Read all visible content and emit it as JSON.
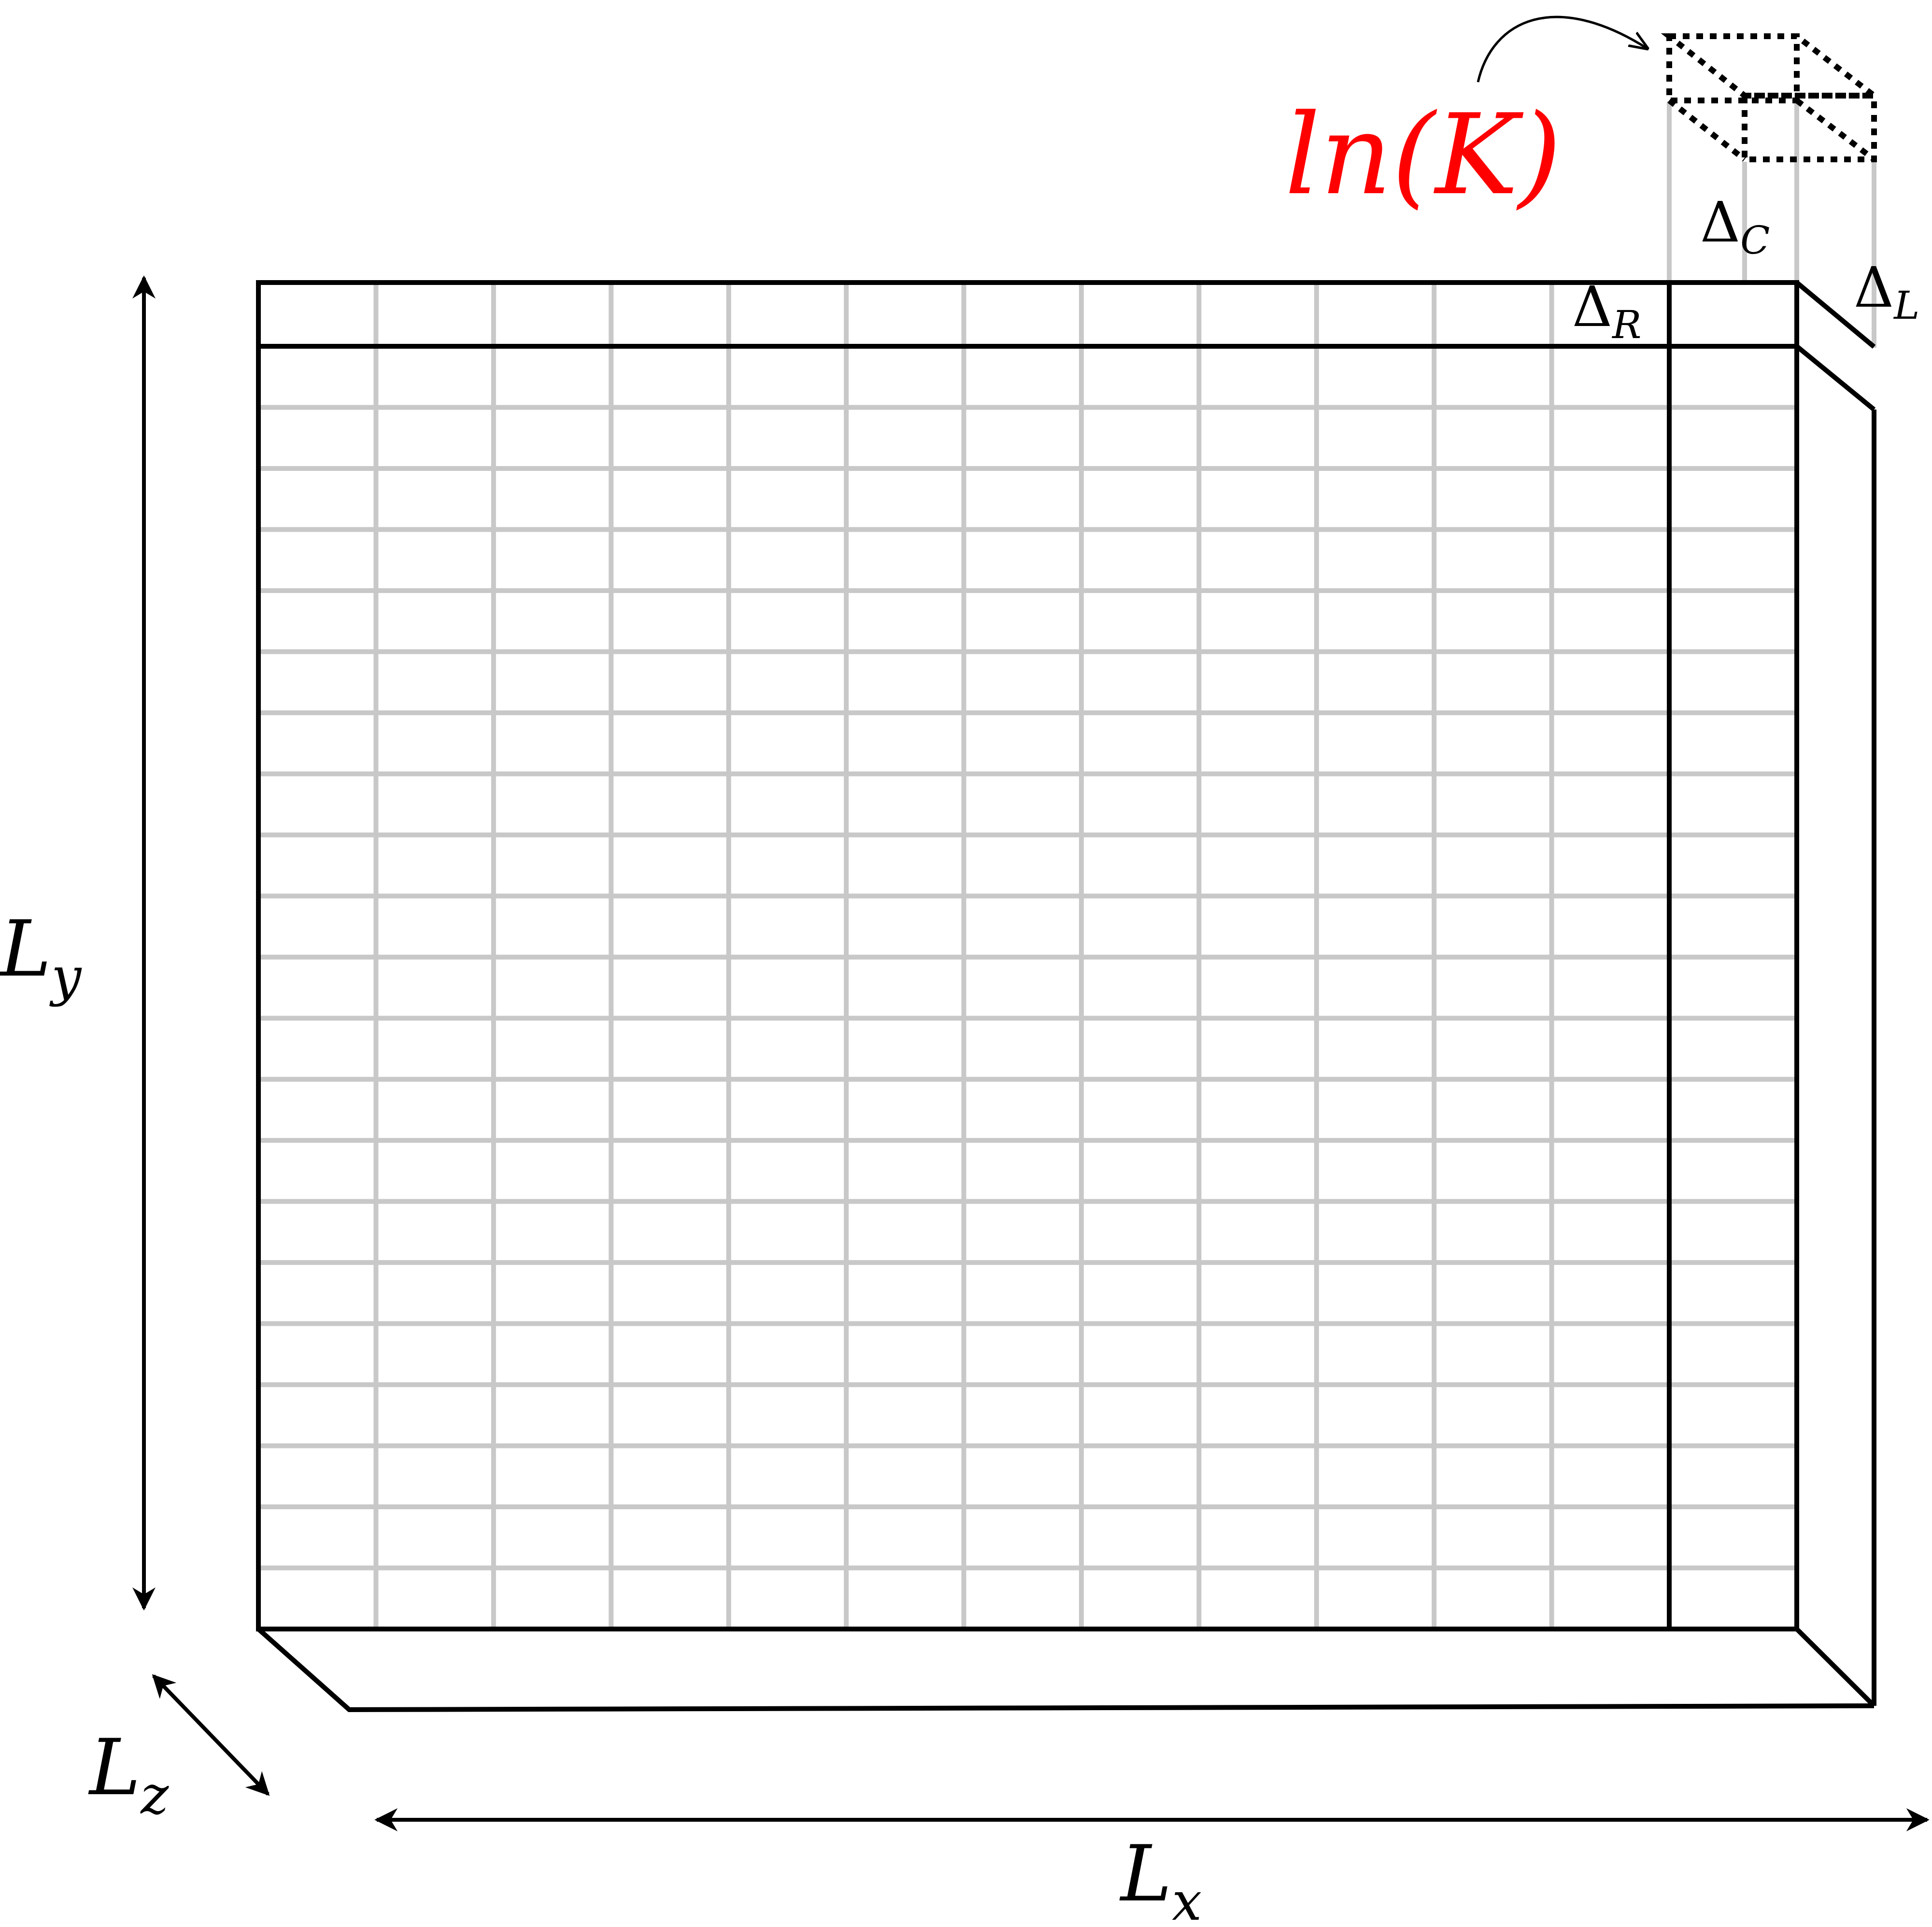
{
  "labels": {
    "lnK": "ln(K)",
    "delta_c_symbol": "Δ",
    "delta_c_sub": "C",
    "delta_r_symbol": "Δ",
    "delta_r_sub": "R",
    "delta_l_symbol": "Δ",
    "delta_l_sub": "L",
    "ly_main": "L",
    "ly_sub": "y",
    "lz_main": "L",
    "lz_sub": "z",
    "lx_main": "L",
    "lx_sub": "x"
  },
  "grid": {
    "columns": 12,
    "rows": 21
  },
  "colors": {
    "lnK": "#ff0000",
    "grid": "#c8c8c8",
    "outline": "#000000"
  }
}
